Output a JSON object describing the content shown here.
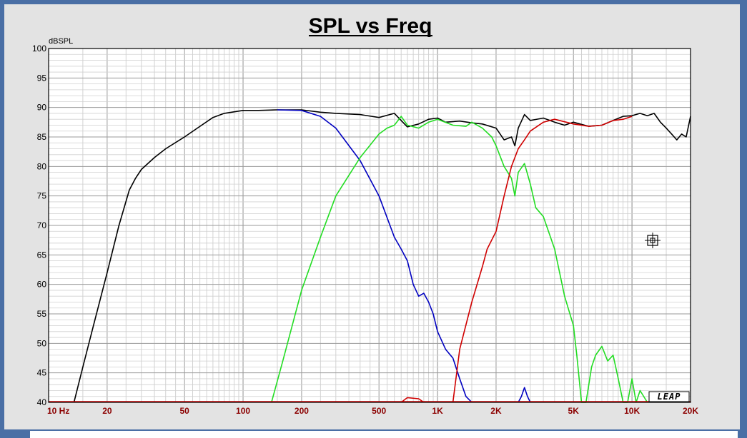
{
  "chart_data": {
    "type": "line",
    "title": "SPL vs Freq",
    "ylabel": "dBSPL",
    "xlabel": "",
    "xscale": "log",
    "xlim": [
      10,
      20000
    ],
    "ylim": [
      40,
      100
    ],
    "grid": true,
    "yticks": [
      "100",
      "95",
      "90",
      "85",
      "80",
      "75",
      "70",
      "65",
      "60",
      "55",
      "50",
      "45",
      "40"
    ],
    "xticks": [
      {
        "label": "10 Hz",
        "value": 10
      },
      {
        "label": "20",
        "value": 20
      },
      {
        "label": "50",
        "value": 50
      },
      {
        "label": "100",
        "value": 100
      },
      {
        "label": "200",
        "value": 200
      },
      {
        "label": "500",
        "value": 500
      },
      {
        "label": "1K",
        "value": 1000
      },
      {
        "label": "2K",
        "value": 2000
      },
      {
        "label": "5K",
        "value": 5000
      },
      {
        "label": "10K",
        "value": 10000
      },
      {
        "label": "20K",
        "value": 20000
      }
    ],
    "watermark": "LEAP",
    "series": [
      {
        "color": "#000000",
        "x": [
          13.5,
          15,
          17,
          20,
          23,
          26,
          28,
          30,
          35,
          40,
          50,
          60,
          70,
          80,
          100,
          120,
          150,
          200,
          250,
          300,
          400,
          500,
          600,
          650,
          700,
          800,
          900,
          1000,
          1100,
          1300,
          1500,
          1700,
          2000,
          2200,
          2400,
          2500,
          2600,
          2800,
          3000,
          3500,
          4000,
          4500,
          5000,
          6000,
          7000,
          8000,
          9000,
          10000,
          11000,
          12000,
          13000,
          14000,
          15000,
          16000,
          17000,
          18000,
          19000,
          20000
        ],
        "y": [
          40,
          46,
          53,
          62,
          70,
          76,
          78,
          79.5,
          81.5,
          83,
          85,
          86.8,
          88.3,
          89,
          89.5,
          89.5,
          89.6,
          89.6,
          89.2,
          89,
          88.8,
          88.3,
          89,
          87.8,
          86.7,
          87.2,
          88,
          88.2,
          87.5,
          87.7,
          87.4,
          87.2,
          86.5,
          84.5,
          85,
          83.5,
          86.5,
          88.8,
          87.8,
          88.2,
          87.5,
          87,
          87.5,
          86.8,
          87,
          87.8,
          88.5,
          88.6,
          89,
          88.6,
          89,
          87.5,
          86.5,
          85.5,
          84.5,
          85.5,
          85,
          88.5
        ]
      },
      {
        "color": "#0000c0",
        "x": [
          150,
          200,
          250,
          300,
          400,
          500,
          600,
          650,
          700,
          750,
          800,
          850,
          900,
          950,
          1000,
          1100,
          1200,
          1300,
          1400,
          1500
        ],
        "y": [
          89.6,
          89.5,
          88.5,
          86.5,
          81,
          75,
          68,
          66,
          64,
          60,
          58,
          58.5,
          57,
          55,
          52,
          49,
          47.5,
          44,
          41,
          40
        ]
      },
      {
        "color": "#0000c0",
        "x": [
          2600,
          2700,
          2800,
          2900,
          3000
        ],
        "y": [
          40,
          41,
          42.5,
          41,
          40
        ]
      },
      {
        "color": "#22dd22",
        "x": [
          140,
          160,
          200,
          250,
          300,
          400,
          500,
          550,
          600,
          650,
          700,
          800,
          900,
          1000,
          1200,
          1400,
          1500,
          1700,
          1900,
          2000,
          2200,
          2400,
          2500,
          2600,
          2800,
          3000,
          3200,
          3500,
          4000,
          4500,
          5000,
          5200,
          5500,
          5800,
          6200,
          6500,
          7000,
          7500,
          8000,
          8500,
          9000,
          9500,
          10000,
          10500,
          11000,
          12000
        ],
        "y": [
          40,
          47,
          59,
          68,
          75,
          81.5,
          85.5,
          86.5,
          87,
          88.5,
          87,
          86.5,
          87.5,
          88,
          87,
          86.8,
          87.5,
          86.5,
          85,
          83.5,
          80,
          78,
          75,
          79,
          80.5,
          77,
          73,
          71.5,
          66,
          58,
          53,
          48,
          40,
          40,
          46,
          48,
          49.5,
          47,
          48,
          44,
          40,
          40,
          44,
          40,
          42,
          40
        ]
      },
      {
        "color": "#d00000",
        "x": [
          650,
          700,
          800,
          850
        ],
        "y": [
          40,
          40.8,
          40.6,
          40
        ]
      },
      {
        "color": "#d00000",
        "x": [
          1200,
          1300,
          1500,
          1700,
          1800,
          2000,
          2200,
          2400,
          2600,
          2800,
          3000,
          3500,
          4000,
          5000,
          6000,
          7000,
          8000,
          9000,
          10000
        ],
        "y": [
          40,
          49,
          57,
          63,
          66,
          69,
          75,
          80,
          83,
          84.5,
          86,
          87.5,
          88,
          87.2,
          86.8,
          87,
          87.8,
          88,
          88.5
        ]
      }
    ]
  }
}
